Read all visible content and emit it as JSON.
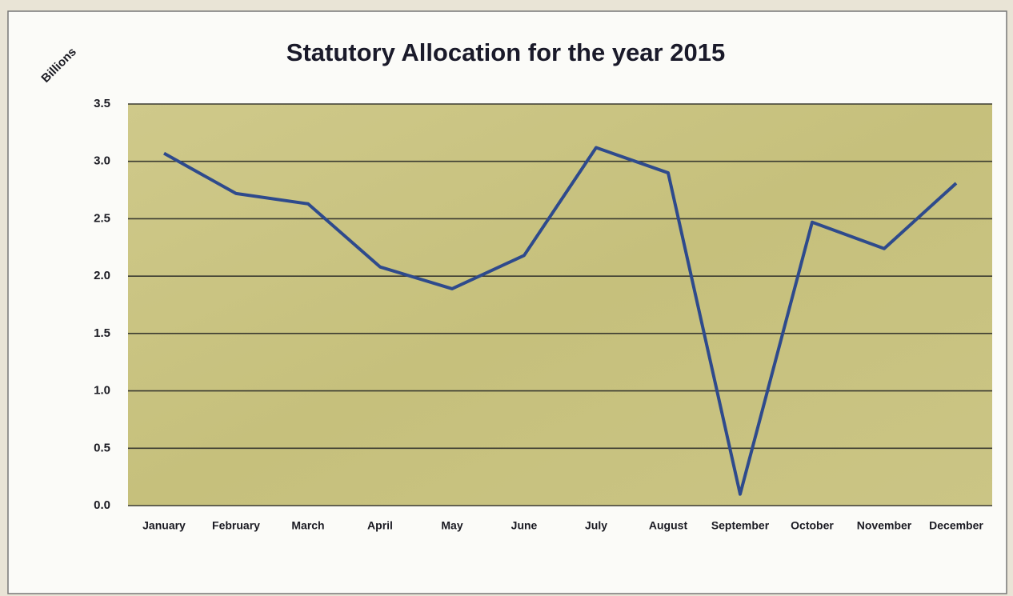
{
  "chart_data": {
    "type": "line",
    "title": "Statutory Allocation for the year 2015",
    "y_label": "Billions",
    "categories": [
      "January",
      "February",
      "March",
      "April",
      "May",
      "June",
      "July",
      "August",
      "September",
      "October",
      "November",
      "December"
    ],
    "series": [
      {
        "name": "Statutory Allocation",
        "color": "#2e4a8c",
        "values": [
          3.07,
          2.72,
          2.63,
          2.08,
          1.89,
          2.18,
          3.12,
          2.9,
          0.1,
          2.47,
          2.24,
          2.81
        ]
      }
    ],
    "ylim": [
      0,
      3.5
    ],
    "yticks": [
      {
        "value": 0,
        "label": "0.0"
      },
      0.5,
      {
        "value": 1,
        "label": "1.0"
      },
      1.5,
      {
        "value": 2,
        "label": "2.0"
      },
      2.5,
      {
        "value": 3,
        "label": "3.0"
      },
      3.5
    ],
    "grid": true
  }
}
